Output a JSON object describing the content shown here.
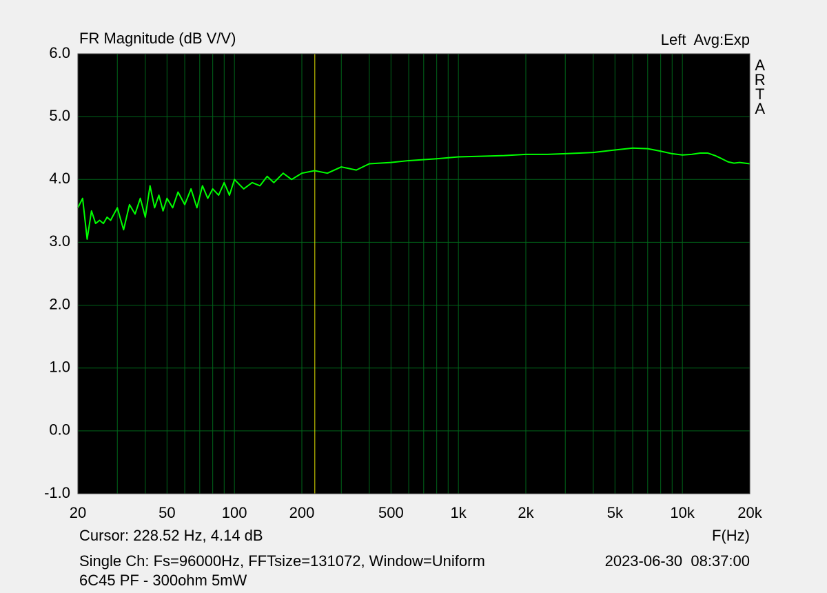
{
  "chart_data": {
    "type": "line",
    "title": "FR Magnitude (dB V/V)",
    "annotations": {
      "channel": "Left  Avg:Exp",
      "brand": "ARTA",
      "cursor": "Cursor: 228.52 Hz, 4.14 dB",
      "x_label": "F(Hz)",
      "settings": "Single Ch: Fs=96000Hz, FFTsize=131072, Window=Uniform",
      "timestamp": "2023-06-30  08:37:00",
      "description": "6C45 PF - 300ohm 5mW"
    },
    "cursor_x": 228.52,
    "cursor_color": "#e8e800",
    "log_x": true,
    "grid": true,
    "grid_color": "#00661a",
    "background": "#000000",
    "xlim": [
      20,
      20000
    ],
    "ylim": [
      -1,
      6
    ],
    "xticks": [
      20,
      50,
      100,
      200,
      500,
      {
        "value": 1000,
        "label": "1k"
      },
      {
        "value": 2000,
        "label": "2k"
      },
      {
        "value": 5000,
        "label": "5k"
      },
      {
        "value": 10000,
        "label": "10k"
      },
      {
        "value": 20000,
        "label": "20k"
      }
    ],
    "xminorticks": [
      30,
      40,
      60,
      70,
      80,
      90,
      300,
      400,
      600,
      700,
      800,
      900,
      3000,
      4000,
      6000,
      7000,
      8000,
      9000
    ],
    "yticks": [
      {
        "value": -1,
        "label": "-1.0"
      },
      {
        "value": 0,
        "label": "0.0"
      },
      {
        "value": 1,
        "label": "1.0"
      },
      {
        "value": 2,
        "label": "2.0"
      },
      {
        "value": 3,
        "label": "3.0"
      },
      {
        "value": 4,
        "label": "4.0"
      },
      {
        "value": 5,
        "label": "5.0"
      },
      {
        "value": 6,
        "label": "6.0"
      }
    ],
    "x": [
      20,
      21,
      22,
      23,
      24,
      25,
      26,
      27,
      28,
      30,
      32,
      34,
      36,
      38,
      40,
      42,
      44,
      46,
      48,
      50,
      53,
      56,
      60,
      64,
      68,
      72,
      76,
      80,
      85,
      90,
      95,
      100,
      110,
      120,
      130,
      140,
      150,
      165,
      180,
      200,
      228,
      260,
      300,
      350,
      400,
      500,
      600,
      800,
      1000,
      1300,
      1600,
      2000,
      2500,
      3000,
      4000,
      5000,
      6000,
      7000,
      8000,
      9000,
      10000,
      11000,
      12000,
      13000,
      14000,
      15000,
      16000,
      17000,
      18000,
      20000
    ],
    "series": [
      {
        "name": "FR",
        "color": "#00ff00",
        "values": [
          3.55,
          3.7,
          3.05,
          3.5,
          3.3,
          3.35,
          3.3,
          3.4,
          3.35,
          3.55,
          3.2,
          3.6,
          3.45,
          3.7,
          3.4,
          3.9,
          3.55,
          3.75,
          3.5,
          3.7,
          3.55,
          3.8,
          3.6,
          3.85,
          3.55,
          3.9,
          3.7,
          3.85,
          3.75,
          3.95,
          3.75,
          4.0,
          3.85,
          3.95,
          3.9,
          4.05,
          3.95,
          4.1,
          4.0,
          4.1,
          4.14,
          4.1,
          4.2,
          4.15,
          4.25,
          4.27,
          4.3,
          4.33,
          4.36,
          4.37,
          4.38,
          4.4,
          4.4,
          4.41,
          4.43,
          4.47,
          4.5,
          4.49,
          4.45,
          4.41,
          4.39,
          4.4,
          4.42,
          4.42,
          4.38,
          4.33,
          4.28,
          4.26,
          4.27,
          4.25
        ]
      }
    ]
  }
}
